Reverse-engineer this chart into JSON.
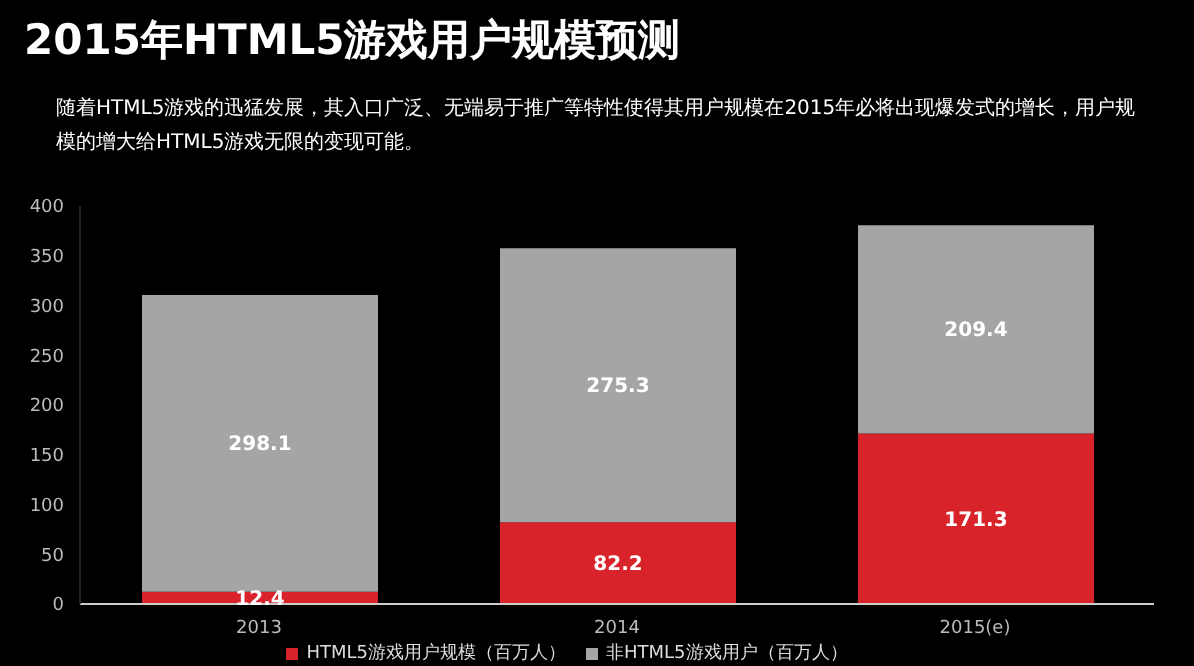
{
  "chart_data": {
    "type": "bar",
    "title": "2015年HTML5游戏用户规模预测",
    "subtitle": "随着HTML5游戏的迅猛发展，其入口广泛、无端易于推广等特性使得其用户规模在2015年必将出现爆发式的增长，用户规模的增大给HTML5游戏无限的变现可能。",
    "categories": [
      "2013",
      "2014",
      "2015(e)"
    ],
    "series": [
      {
        "name": "HTML5游戏用户规模（百万人）",
        "color": "#d8232a",
        "values": [
          12.4,
          82.2,
          171.3
        ]
      },
      {
        "name": "非HTML5游戏用户（百万人）",
        "color": "#a5a5a5",
        "values": [
          298.1,
          275.3,
          209.4
        ]
      }
    ],
    "stacked": true,
    "data_labels": true,
    "ylim": [
      0,
      400
    ],
    "yticks": [
      0,
      50,
      100,
      150,
      200,
      250,
      300,
      350,
      400
    ],
    "grid": false,
    "legend": "bottom"
  }
}
